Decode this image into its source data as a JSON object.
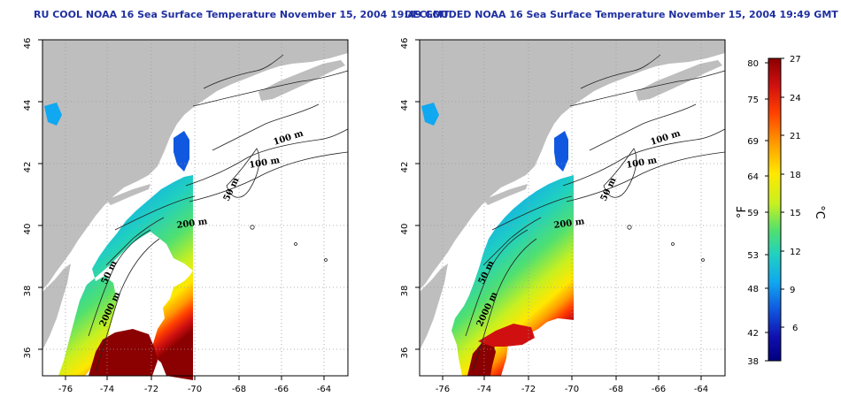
{
  "panels": [
    {
      "title": "RU COOL NOAA 16 Sea Surface Temperature November 15, 2004 19:49 GMT",
      "lat_ticks": [
        "46",
        "44",
        "42",
        "40",
        "38",
        "36"
      ],
      "lon_ticks": [
        "-76",
        "-74",
        "-72",
        "-70",
        "-68",
        "-66",
        "-64"
      ],
      "contour_labels": [
        "100 m",
        "100 m",
        "50 m",
        "200 m",
        "50 m",
        "2000 m"
      ]
    },
    {
      "title": "DECLOUDED NOAA 16 Sea Surface Temperature November 15, 2004 19:49 GMT",
      "lat_ticks": [
        "46",
        "44",
        "42",
        "40",
        "38",
        "36"
      ],
      "lon_ticks": [
        "-76",
        "-74",
        "-72",
        "-70",
        "-68",
        "-66",
        "-64"
      ],
      "contour_labels": [
        "100 m",
        "100 m",
        "50 m",
        "200 m",
        "50 m",
        "2000 m"
      ]
    }
  ],
  "colorbar": {
    "fahrenheit_ticks": [
      "80",
      "75",
      "69",
      "64",
      "59",
      "53",
      "48",
      "42",
      "38"
    ],
    "celsius_ticks": [
      "27",
      "24",
      "21",
      "18",
      "15",
      "12",
      "9",
      "6"
    ],
    "fahrenheit_label": "°F",
    "celsius_label": "°C",
    "colors": [
      "#8b0000",
      "#d01010",
      "#ff4000",
      "#ff9a00",
      "#ffe800",
      "#c8f020",
      "#50e070",
      "#20d0c0",
      "#10a8f0",
      "#1058e0",
      "#1010b0",
      "#000080"
    ]
  },
  "colors": {
    "land": "#bebebe",
    "title": "#1f2fa0",
    "grid": "#9a9a9a"
  }
}
